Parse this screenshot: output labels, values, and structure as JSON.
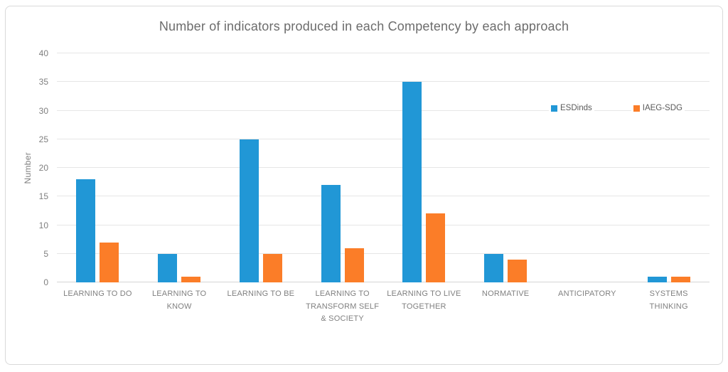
{
  "chart_data": {
    "type": "bar",
    "title": "Number of indicators produced in each Competency by each approach",
    "xlabel": "",
    "ylabel": "Number",
    "ylim": [
      0,
      40
    ],
    "yticks": [
      0,
      5,
      10,
      15,
      20,
      25,
      30,
      35,
      40
    ],
    "grid": true,
    "legend_position": "inside-top-right",
    "categories": [
      "LEARNING TO DO",
      "LEARNING TO\nKNOW",
      "LEARNING TO BE",
      "LEARNING TO\nTRANSFORM SELF\n& SOCIETY",
      "LEARNING TO LIVE\nTOGETHER",
      "NORMATIVE",
      "ANTICIPATORY",
      "SYSTEMS\nTHINKING"
    ],
    "series": [
      {
        "name": "ESDinds",
        "color": "#2197d6",
        "values": [
          18,
          5,
          25,
          17,
          35,
          5,
          0,
          1
        ]
      },
      {
        "name": "IAEG-SDG",
        "color": "#fb7d28",
        "values": [
          7,
          1,
          5,
          6,
          12,
          4,
          0,
          1
        ]
      }
    ],
    "colors": {
      "title_text": "#6c6c6c",
      "axis_text": "#7f7f7f",
      "gridline": "#e6e6e6",
      "axis_line": "#d4d4d4",
      "frame_border": "#d9d9d9"
    }
  }
}
